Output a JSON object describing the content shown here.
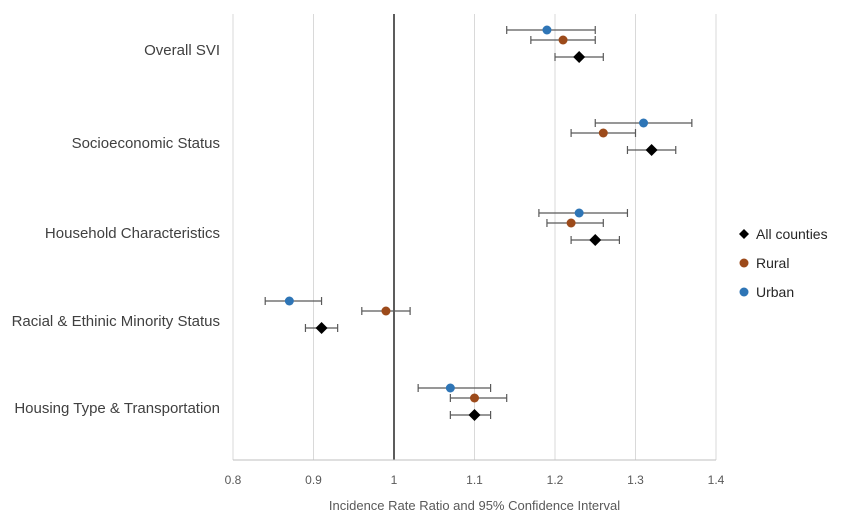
{
  "chart_data": {
    "type": "scatter",
    "xlabel": "Incidence Rate Ratio and 95% Confidence Interval",
    "xlim": [
      0.8,
      1.4
    ],
    "xticks": [
      "0.8",
      "0.9",
      "1",
      "1.1",
      "1.2",
      "1.3",
      "1.4"
    ],
    "grid": "vertical",
    "reference_line": 1,
    "legend_position": "right",
    "categories": [
      "Overall SVI",
      "Socioeconomic Status",
      "Household Characteristics",
      "Racial & Ethinic Minority Status",
      "Housing Type & Transportation"
    ],
    "series": [
      {
        "name": "All counties",
        "color": "#000000",
        "marker": "diamond",
        "values": [
          1.23,
          1.32,
          1.25,
          0.91,
          1.1
        ],
        "lower": [
          1.2,
          1.29,
          1.22,
          0.89,
          1.07
        ],
        "upper": [
          1.26,
          1.35,
          1.28,
          0.93,
          1.12
        ]
      },
      {
        "name": "Rural",
        "color": "#9C4A1A",
        "marker": "circle",
        "values": [
          1.21,
          1.26,
          1.22,
          0.99,
          1.1
        ],
        "lower": [
          1.17,
          1.22,
          1.19,
          0.96,
          1.07
        ],
        "upper": [
          1.25,
          1.3,
          1.26,
          1.02,
          1.14
        ]
      },
      {
        "name": "Urban",
        "color": "#2E75B6",
        "marker": "circle",
        "values": [
          1.19,
          1.31,
          1.23,
          0.87,
          1.07
        ],
        "lower": [
          1.14,
          1.25,
          1.18,
          0.84,
          1.03
        ],
        "upper": [
          1.25,
          1.37,
          1.29,
          0.91,
          1.12
        ]
      }
    ]
  }
}
